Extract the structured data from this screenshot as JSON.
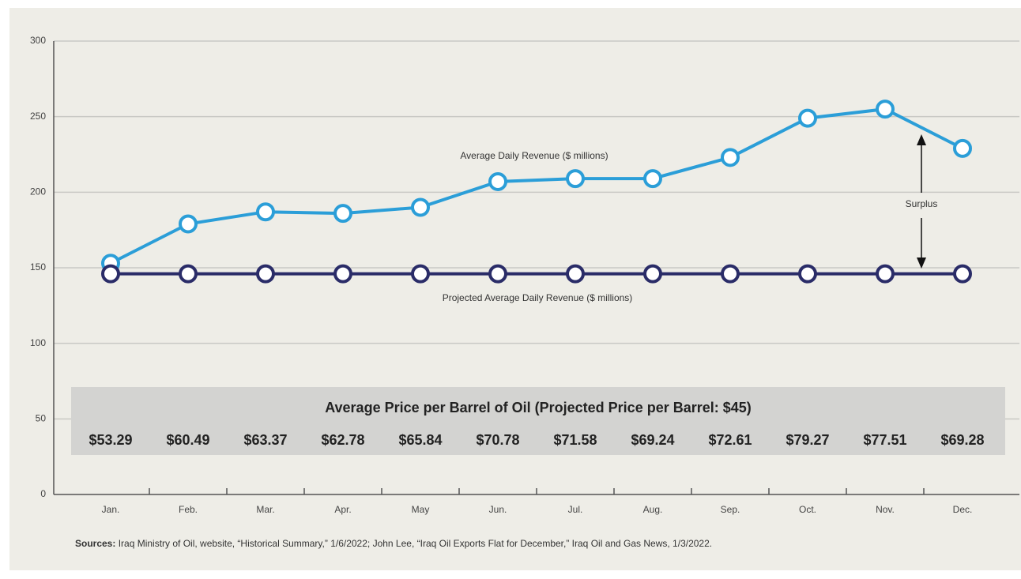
{
  "chart_data": {
    "type": "line",
    "categories": [
      "Jan.",
      "Feb.",
      "Mar.",
      "Apr.",
      "May",
      "Jun.",
      "Jul.",
      "Aug.",
      "Sep.",
      "Oct.",
      "Nov.",
      "Dec."
    ],
    "series": [
      {
        "name": "Average Daily Revenue ($ millions)",
        "color": "#2b9ed8",
        "values": [
          153,
          179,
          187,
          186,
          190,
          207,
          209,
          209,
          223,
          249,
          255,
          229
        ]
      },
      {
        "name": "Projected Average Daily Revenue ($ millions)",
        "color": "#2a2c68",
        "values": [
          146,
          146,
          146,
          146,
          146,
          146,
          146,
          146,
          146,
          146,
          146,
          146
        ]
      }
    ],
    "ylim": [
      0,
      300
    ],
    "yticks": [
      0,
      50,
      100,
      150,
      200,
      250,
      300
    ],
    "grid": true,
    "annotation": "Surplus",
    "price_table": {
      "title": "Average Price per Barrel of Oil (Projected Price per Barrel: $45)",
      "prices": [
        "$53.29",
        "$60.49",
        "$63.37",
        "$62.78",
        "$65.84",
        "$70.78",
        "$71.58",
        "$69.24",
        "$72.61",
        "$79.27",
        "$77.51",
        "$69.28"
      ]
    },
    "sources_label": "Sources:",
    "sources": "Iraq Ministry of Oil, website, “Historical Summary,” 1/6/2022; John Lee, “Iraq Oil Exports Flat for December,” Iraq Oil and Gas News, 1/3/2022."
  }
}
